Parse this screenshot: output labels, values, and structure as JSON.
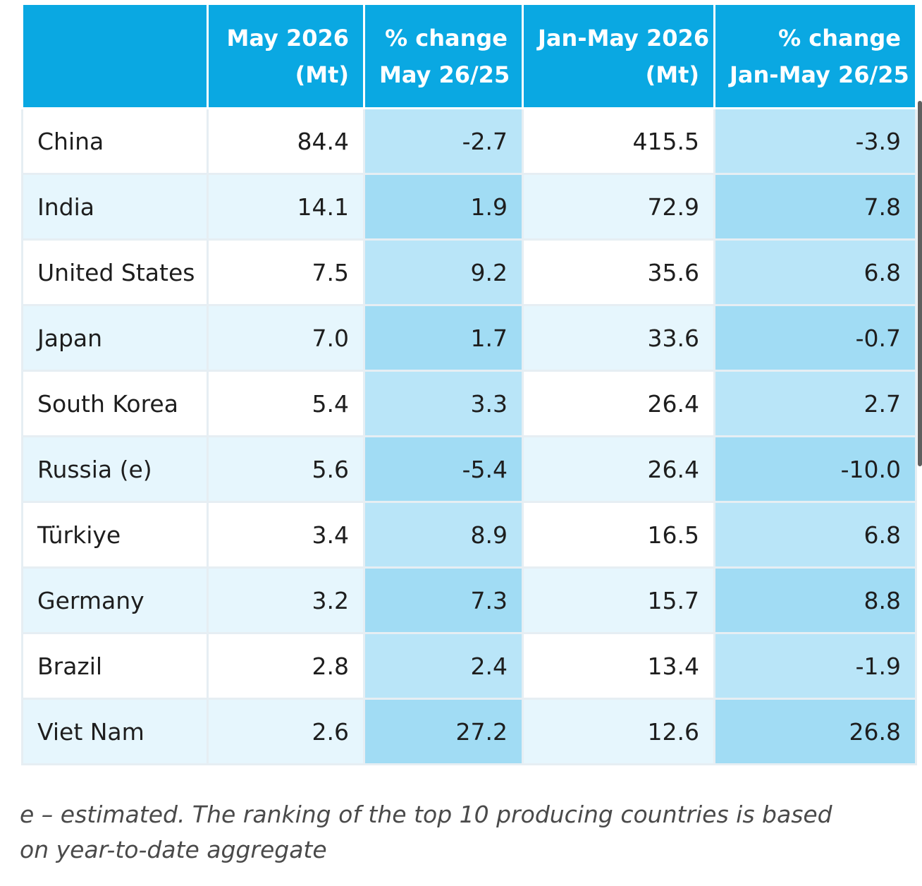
{
  "table": {
    "headers": [
      {
        "line1": "",
        "line2": ""
      },
      {
        "line1": "May 2026",
        "line2": "(Mt)"
      },
      {
        "line1": "% change",
        "line2": "May 26/25"
      },
      {
        "line1": "Jan-May 2026",
        "line2": "(Mt)"
      },
      {
        "line1": "% change",
        "line2": "Jan-May 26/25"
      }
    ],
    "rows": [
      {
        "country": "China",
        "may_mt": "84.4",
        "may_change": "-2.7",
        "ytd_mt": "415.5",
        "ytd_change": "-3.9"
      },
      {
        "country": "India",
        "may_mt": "14.1",
        "may_change": "1.9",
        "ytd_mt": "72.9",
        "ytd_change": "7.8"
      },
      {
        "country": "United States",
        "may_mt": "7.5",
        "may_change": "9.2",
        "ytd_mt": "35.6",
        "ytd_change": "6.8"
      },
      {
        "country": "Japan",
        "may_mt": "7.0",
        "may_change": "1.7",
        "ytd_mt": "33.6",
        "ytd_change": "-0.7"
      },
      {
        "country": "South Korea",
        "may_mt": "5.4",
        "may_change": "3.3",
        "ytd_mt": "26.4",
        "ytd_change": "2.7"
      },
      {
        "country": "Russia (e)",
        "may_mt": "5.6",
        "may_change": "-5.4",
        "ytd_mt": "26.4",
        "ytd_change": "-10.0"
      },
      {
        "country": "Türkiye",
        "may_mt": "3.4",
        "may_change": "8.9",
        "ytd_mt": "16.5",
        "ytd_change": "6.8"
      },
      {
        "country": "Germany",
        "may_mt": "3.2",
        "may_change": "7.3",
        "ytd_mt": "15.7",
        "ytd_change": "8.8"
      },
      {
        "country": "Brazil",
        "may_mt": "2.8",
        "may_change": "2.4",
        "ytd_mt": "13.4",
        "ytd_change": "-1.9"
      },
      {
        "country": "Viet Nam",
        "may_mt": "2.6",
        "may_change": "27.2",
        "ytd_mt": "12.6",
        "ytd_change": "26.8"
      }
    ]
  },
  "footnote": "e – estimated. The ranking of the top 10 producing countries is based on year-to-date aggregate",
  "colors": {
    "header_bg": "#0aa8e2",
    "header_text": "#ffffff",
    "row_white": "#ffffff",
    "row_light": "#e6f6fd",
    "change_col_light": "#b9e5f8",
    "change_col_dark": "#a1dcf4"
  }
}
